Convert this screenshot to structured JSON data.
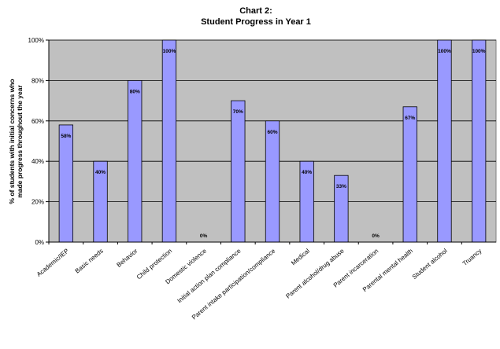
{
  "chart_data": {
    "type": "bar",
    "title": "Chart 2:",
    "subtitle": "Student Progress in Year 1",
    "ylabel_line1": "% of students with initial concerns who",
    "ylabel_line2": "made progress throughout the year",
    "xlabel": "",
    "ylim": [
      0,
      100
    ],
    "yticks": [
      0,
      20,
      40,
      60,
      80,
      100
    ],
    "ytick_labels": [
      "0%",
      "20%",
      "40%",
      "60%",
      "80%",
      "100%"
    ],
    "grid": true,
    "legend": "none",
    "categories": [
      "Academic/IEP",
      "Basic needs",
      "Behavior",
      "Child protection",
      "Domestic violence",
      "Initial action plan compliance",
      "Parent intake participation/compliance",
      "Medical",
      "Parent alcohol/drug abuse",
      "Parent incarceration",
      "Parental mental health",
      "Student alcohol",
      "Truancy"
    ],
    "values": [
      58,
      40,
      80,
      100,
      0,
      70,
      60,
      40,
      33,
      0,
      67,
      100,
      100
    ],
    "data_labels": [
      "58%",
      "40%",
      "80%",
      "100%",
      "0%",
      "70%",
      "60%",
      "40%",
      "33%",
      "0%",
      "67%",
      "100%",
      "100%"
    ],
    "colors": {
      "bar_fill": "#9999ff",
      "bar_stroke": "#000000",
      "plot_bg": "#c0c0c0",
      "gridline": "#000000"
    }
  }
}
